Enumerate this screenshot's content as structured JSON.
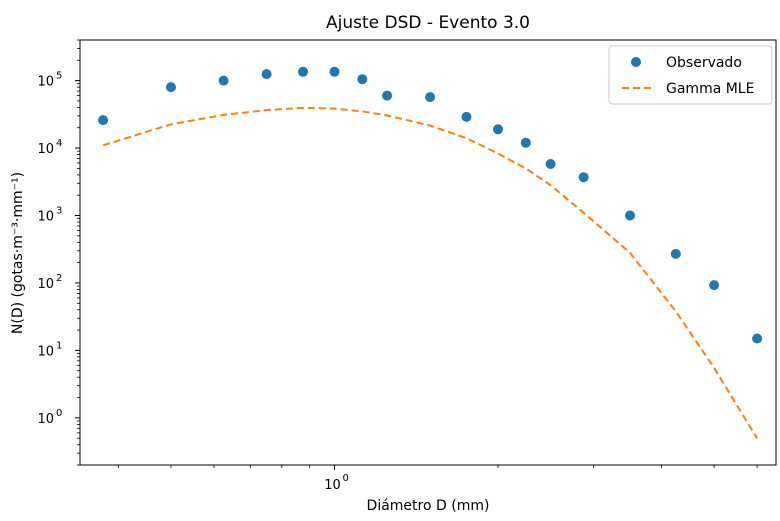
{
  "chart_data": {
    "type": "scatter",
    "title": "Ajuste DSD - Evento 3.0",
    "xlabel": "Diámetro D (mm)",
    "ylabel": "N(D) (gotas·m⁻³·mm⁻¹)",
    "xscale": "log",
    "yscale": "log",
    "xlim": [
      0.34,
      6.5
    ],
    "ylim": [
      0.2,
      400000
    ],
    "x_major_ticks": [
      {
        "value": 1,
        "label": "10"
      }
    ],
    "x_major_tick_exponents": [
      "0"
    ],
    "x_minor_ticks": [
      0.4,
      0.5,
      0.6,
      0.7,
      0.8,
      0.9,
      2,
      3,
      4,
      5,
      6
    ],
    "y_ticks": [
      {
        "value": 1,
        "base": "10",
        "exp": "0"
      },
      {
        "value": 10,
        "base": "10",
        "exp": "1"
      },
      {
        "value": 100,
        "base": "10",
        "exp": "2"
      },
      {
        "value": 1000,
        "base": "10",
        "exp": "3"
      },
      {
        "value": 10000,
        "base": "10",
        "exp": "4"
      },
      {
        "value": 100000,
        "base": "10",
        "exp": "5"
      }
    ],
    "grid": false,
    "legend_position": "top-right",
    "series": [
      {
        "name": "Observado",
        "kind": "scatter",
        "color": "#1f77b4",
        "x": [
          0.375,
          0.5,
          0.625,
          0.75,
          0.875,
          1.0,
          1.125,
          1.25,
          1.5,
          1.75,
          2.0,
          2.25,
          2.5,
          2.875,
          3.5,
          4.25,
          5.0,
          6.0
        ],
        "y": [
          26000,
          80000,
          100000,
          125000,
          135000,
          135000,
          105000,
          60000,
          57000,
          29000,
          19000,
          12000,
          5800,
          3700,
          1000,
          270,
          93,
          15
        ]
      },
      {
        "name": "Gamma MLE",
        "kind": "line",
        "style": "dashed",
        "color": "#ff7f0e",
        "x": [
          0.375,
          0.5,
          0.625,
          0.75,
          0.875,
          1.0,
          1.125,
          1.25,
          1.5,
          1.75,
          2.0,
          2.25,
          2.5,
          2.875,
          3.5,
          4.25,
          5.0,
          6.0
        ],
        "y": [
          11000,
          22500,
          31000,
          36500,
          39500,
          38500,
          35000,
          30500,
          21500,
          14000,
          8300,
          5000,
          2800,
          1100,
          280,
          38,
          5.5,
          0.5
        ]
      }
    ]
  }
}
